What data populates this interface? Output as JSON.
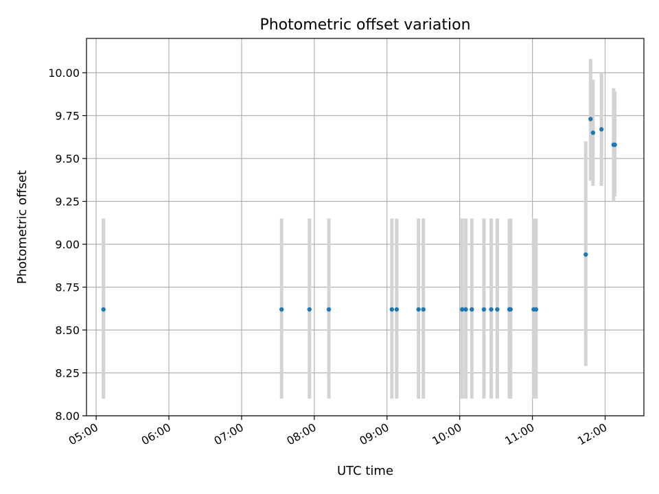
{
  "chart_data": {
    "type": "scatter",
    "title": "Photometric offset variation",
    "xlabel": "UTC time",
    "ylabel": "Photometric offset",
    "grid": true,
    "xlim": [
      "04:52",
      "12:32"
    ],
    "ylim": [
      8.0,
      10.2
    ],
    "x_ticks": [
      "05:00",
      "06:00",
      "07:00",
      "08:00",
      "09:00",
      "10:00",
      "11:00",
      "12:00"
    ],
    "y_ticks": [
      "8.00",
      "8.25",
      "8.50",
      "8.75",
      "9.00",
      "9.25",
      "9.50",
      "9.75",
      "10.00"
    ],
    "colors": {
      "points": "#1f77b4",
      "error_bars": "#d3d3d3",
      "grid": "#b0b0b0"
    },
    "points": [
      {
        "x": "05:06",
        "y": 8.62,
        "y_low": 8.1,
        "y_high": 9.15
      },
      {
        "x": "07:33",
        "y": 8.62,
        "y_low": 8.1,
        "y_high": 9.15
      },
      {
        "x": "07:56",
        "y": 8.62,
        "y_low": 8.1,
        "y_high": 9.15
      },
      {
        "x": "08:12",
        "y": 8.62,
        "y_low": 8.1,
        "y_high": 9.15
      },
      {
        "x": "09:04",
        "y": 8.62,
        "y_low": 8.1,
        "y_high": 9.15
      },
      {
        "x": "09:08",
        "y": 8.62,
        "y_low": 8.1,
        "y_high": 9.15
      },
      {
        "x": "09:26",
        "y": 8.62,
        "y_low": 8.1,
        "y_high": 9.15
      },
      {
        "x": "09:30",
        "y": 8.62,
        "y_low": 8.1,
        "y_high": 9.15
      },
      {
        "x": "10:02",
        "y": 8.62,
        "y_low": 8.1,
        "y_high": 9.15
      },
      {
        "x": "10:05",
        "y": 8.62,
        "y_low": 8.1,
        "y_high": 9.15
      },
      {
        "x": "10:10",
        "y": 8.62,
        "y_low": 8.1,
        "y_high": 9.15
      },
      {
        "x": "10:20",
        "y": 8.62,
        "y_low": 8.1,
        "y_high": 9.15
      },
      {
        "x": "10:26",
        "y": 8.62,
        "y_low": 8.1,
        "y_high": 9.15
      },
      {
        "x": "10:31",
        "y": 8.62,
        "y_low": 8.1,
        "y_high": 9.15
      },
      {
        "x": "10:41",
        "y": 8.62,
        "y_low": 8.1,
        "y_high": 9.15
      },
      {
        "x": "10:42",
        "y": 8.62,
        "y_low": 8.1,
        "y_high": 9.15
      },
      {
        "x": "11:01",
        "y": 8.62,
        "y_low": 8.1,
        "y_high": 9.15
      },
      {
        "x": "11:03",
        "y": 8.62,
        "y_low": 8.1,
        "y_high": 9.15
      },
      {
        "x": "11:44",
        "y": 8.94,
        "y_low": 8.29,
        "y_high": 9.6
      },
      {
        "x": "11:48",
        "y": 9.73,
        "y_low": 9.37,
        "y_high": 10.08
      },
      {
        "x": "11:50",
        "y": 9.65,
        "y_low": 9.34,
        "y_high": 9.96
      },
      {
        "x": "11:57",
        "y": 9.67,
        "y_low": 9.34,
        "y_high": 10.0
      },
      {
        "x": "12:07",
        "y": 9.58,
        "y_low": 9.25,
        "y_high": 9.91
      },
      {
        "x": "12:08",
        "y": 9.58,
        "y_low": 9.28,
        "y_high": 9.89
      }
    ]
  }
}
